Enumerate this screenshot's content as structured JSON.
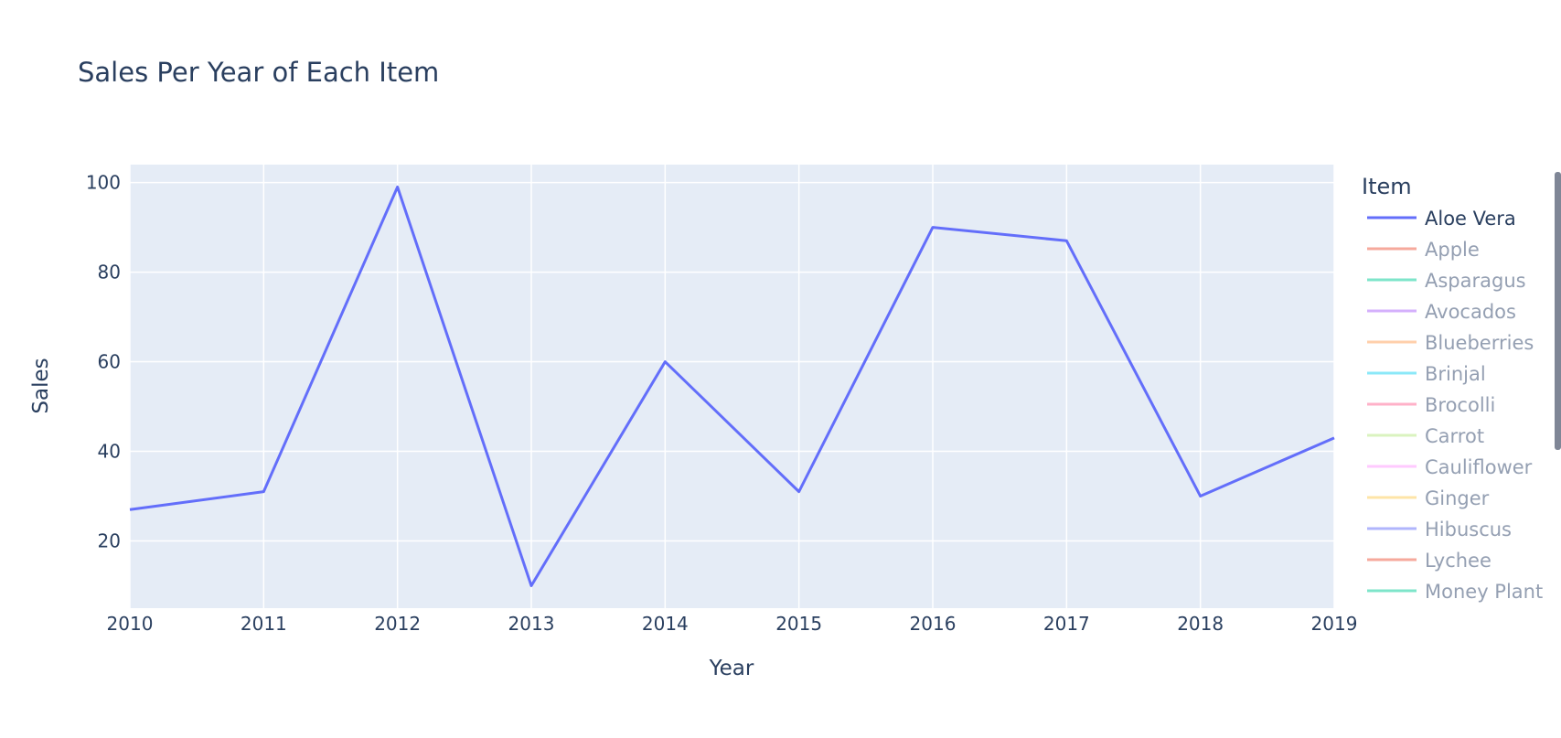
{
  "chart_data": {
    "type": "line",
    "title": "Sales Per Year of Each Item",
    "xlabel": "Year",
    "ylabel": "Sales",
    "x": [
      2010,
      2011,
      2012,
      2013,
      2014,
      2015,
      2016,
      2017,
      2018,
      2019
    ],
    "xlim": [
      2010,
      2019
    ],
    "ylim": [
      5,
      104
    ],
    "y_ticks": [
      20,
      40,
      60,
      80,
      100
    ],
    "grid": true,
    "legend_title": "Item",
    "legend_placement": "right",
    "series": [
      {
        "name": "Aloe Vera",
        "color": "#636efa",
        "visible": true,
        "values": [
          27,
          31,
          99,
          10,
          60,
          31,
          90,
          87,
          30,
          43
        ]
      },
      {
        "name": "Apple",
        "color": "#ef553b",
        "visible": false
      },
      {
        "name": "Asparagus",
        "color": "#00cc96",
        "visible": false
      },
      {
        "name": "Avocados",
        "color": "#ab63fa",
        "visible": false
      },
      {
        "name": "Blueberries",
        "color": "#ffa15a",
        "visible": false
      },
      {
        "name": "Brinjal",
        "color": "#19d3f3",
        "visible": false
      },
      {
        "name": "Brocolli",
        "color": "#ff6692",
        "visible": false
      },
      {
        "name": "Carrot",
        "color": "#b6e880",
        "visible": false
      },
      {
        "name": "Cauliflower",
        "color": "#ff97ff",
        "visible": false
      },
      {
        "name": "Ginger",
        "color": "#fecb52",
        "visible": false
      },
      {
        "name": "Hibuscus",
        "color": "#636efa",
        "visible": false
      },
      {
        "name": "Lychee",
        "color": "#ef553b",
        "visible": false
      },
      {
        "name": "Money Plant",
        "color": "#00cc96",
        "visible": false
      }
    ]
  }
}
